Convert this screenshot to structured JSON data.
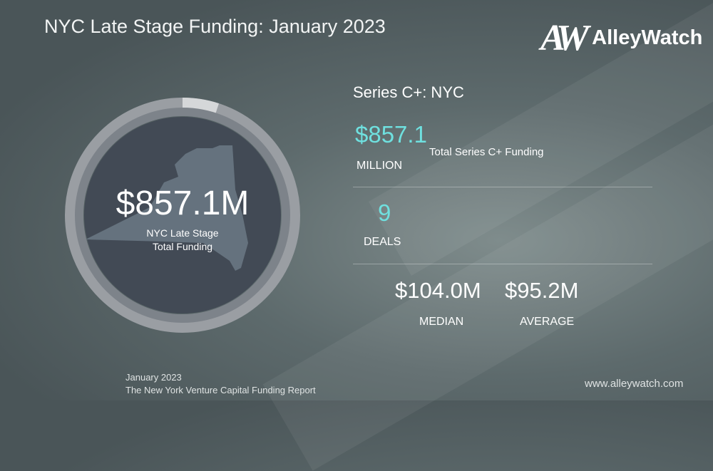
{
  "header": {
    "title": "NYC Late Stage Funding: January 2023"
  },
  "logo": {
    "mark": "AW",
    "name": "AlleyWatch"
  },
  "ring": {
    "value": "$857.1M",
    "label_line1": "NYC Late Stage",
    "label_line2": "Total Funding",
    "highlight_fraction": 0.05,
    "map_icon": "new-york-state-map-icon"
  },
  "stats": {
    "section_title": "Series C+: NYC",
    "total_value": "$857.1",
    "total_unit": "MILLION",
    "total_label": "Total Series C+ Funding",
    "deals_value": "9",
    "deals_label": "DEALS",
    "median_value": "$104.0M",
    "median_label": "MEDIAN",
    "average_value": "$95.2M",
    "average_label": "AVERAGE"
  },
  "footer": {
    "date": "January 2023",
    "report": "The New York Venture Capital Funding Report",
    "website": "www.alleywatch.com"
  },
  "colors": {
    "accent": "#6fe0df",
    "circle": "#424a55",
    "map": "#65727e"
  }
}
